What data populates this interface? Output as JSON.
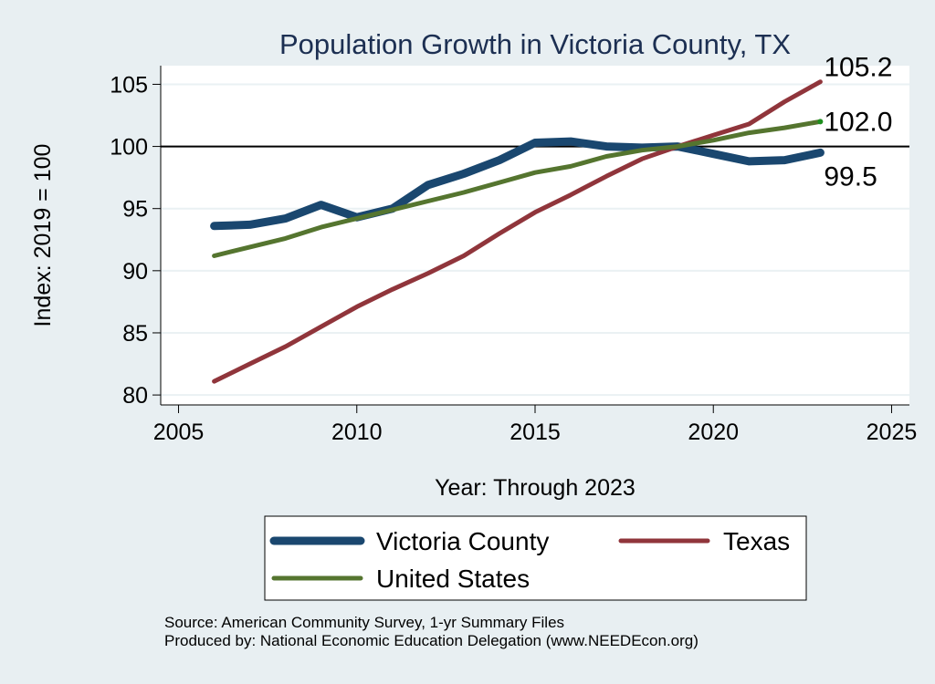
{
  "chart_data": {
    "type": "line",
    "title": "Population Growth in Victoria County, TX",
    "xlabel": "Year: Through 2023",
    "ylabel": "Index: 2019 = 100",
    "xlim": [
      2004.5,
      2025.5
    ],
    "ylim": [
      79.2,
      106.5
    ],
    "xticks": [
      2005,
      2010,
      2015,
      2020,
      2025
    ],
    "yticks": [
      80,
      85,
      90,
      95,
      100,
      105
    ],
    "reference_line": 100,
    "grid": true,
    "legend_position": "bottom",
    "x": [
      2006,
      2007,
      2008,
      2009,
      2010,
      2011,
      2012,
      2013,
      2014,
      2015,
      2016,
      2017,
      2018,
      2019,
      2020,
      2021,
      2022,
      2023
    ],
    "series": [
      {
        "name": "Victoria  County",
        "color": "#1a476f",
        "values": [
          93.6,
          93.7,
          94.2,
          95.3,
          94.3,
          95.0,
          96.9,
          97.8,
          98.9,
          100.3,
          100.4,
          100.0,
          99.9,
          100.0,
          99.4,
          98.8,
          98.9,
          99.5
        ],
        "end_label": "99.5"
      },
      {
        "name": "Texas",
        "color": "#90353b",
        "values": [
          81.1,
          82.5,
          83.9,
          85.5,
          87.1,
          88.5,
          89.8,
          91.2,
          93.0,
          94.7,
          96.1,
          97.6,
          99.0,
          100.0,
          100.9,
          101.8,
          103.6,
          105.2
        ],
        "end_label": "105.2"
      },
      {
        "name": "United States",
        "color": "#55752f",
        "values": [
          91.2,
          91.9,
          92.6,
          93.5,
          94.2,
          94.9,
          95.6,
          96.3,
          97.1,
          97.9,
          98.4,
          99.2,
          99.7,
          100.0,
          100.5,
          101.1,
          101.5,
          102.0
        ],
        "end_label": "102.0"
      }
    ]
  },
  "notes": {
    "source": "Source: American Community Survey, 1-yr Summary Files",
    "produced_by": "Produced by: National Economic Education Delegation (www.NEEDEcon.org)"
  }
}
